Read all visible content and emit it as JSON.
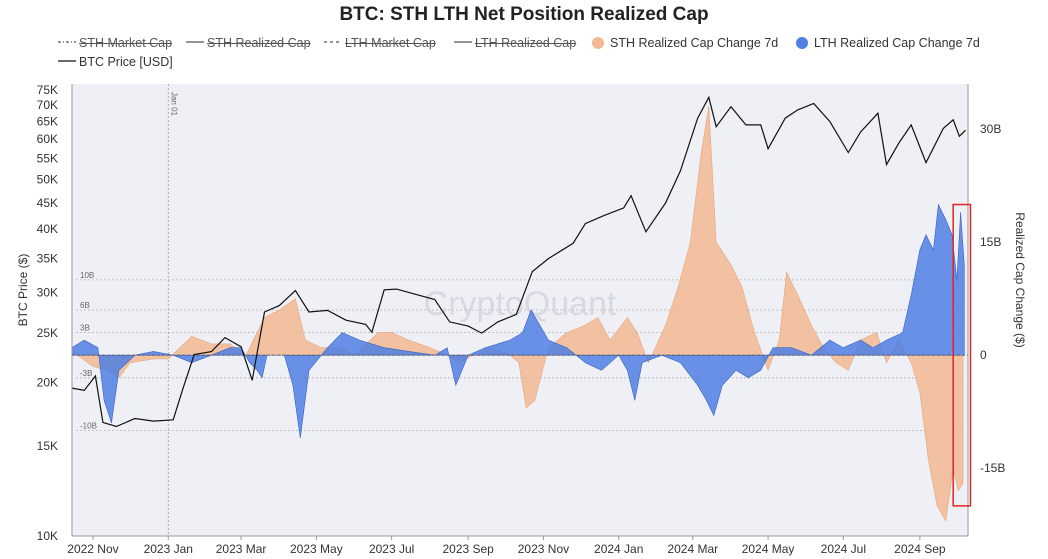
{
  "chart_data": {
    "type": "area",
    "title": "BTC: STH LTH Net Position Realized Cap",
    "legend": [
      {
        "label": "STH Market Cap",
        "style": "dashdot",
        "color": "#555555",
        "hidden": true
      },
      {
        "label": "STH Realized Cap",
        "style": "solid",
        "color": "#555555",
        "hidden": true
      },
      {
        "label": "LTH Market Cap",
        "style": "dashed",
        "color": "#555555",
        "hidden": true
      },
      {
        "label": "LTH Realized Cap",
        "style": "solid",
        "color": "#555555",
        "hidden": true
      },
      {
        "label": "STH Realized Cap Change 7d",
        "style": "dot",
        "color": "#f1b993",
        "hidden": false
      },
      {
        "label": "LTH Realized Cap Change 7d",
        "style": "dot",
        "color": "#4f7fe3",
        "hidden": false
      },
      {
        "label": "BTC Price [USD]",
        "style": "solid",
        "color": "#111111",
        "hidden": false
      }
    ],
    "x_tick_labels": [
      "2022 Nov",
      "2023 Jan",
      "2023 Mar",
      "2023 May",
      "2023 Jul",
      "2023 Sep",
      "2023 Nov",
      "2024 Jan",
      "2024 Mar",
      "2024 May",
      "2024 Jul",
      "2024 Sep"
    ],
    "x_range": [
      "2022-10-15",
      "2024-10-10"
    ],
    "y_left": {
      "label": "BTC Price ($)",
      "scale": "log",
      "ticks": [
        "10K",
        "15K",
        "20K",
        "25K",
        "30K",
        "35K",
        "40K",
        "45K",
        "50K",
        "55K",
        "60K",
        "65K",
        "70K",
        "75K"
      ],
      "range": [
        10000,
        77000
      ]
    },
    "y_right": {
      "label": "Realized Cap Change ($)",
      "ticks": [
        "30B",
        "15B",
        "0",
        "-15B"
      ],
      "range": [
        -24,
        36
      ]
    },
    "guide_labels": [
      "10B",
      "6B",
      "3B",
      "-3B",
      "-10B"
    ],
    "annotation": "Jan 01",
    "watermark": "CryptoQuant",
    "series": [
      {
        "name": "BTC Price [USD]",
        "color": "#111111",
        "points": [
          [
            "2022-10-15",
            19500
          ],
          [
            "2022-10-25",
            19300
          ],
          [
            "2022-11-03",
            20600
          ],
          [
            "2022-11-09",
            16700
          ],
          [
            "2022-11-20",
            16400
          ],
          [
            "2022-12-05",
            17000
          ],
          [
            "2022-12-20",
            16800
          ],
          [
            "2023-01-05",
            16900
          ],
          [
            "2023-01-13",
            19500
          ],
          [
            "2023-01-22",
            22700
          ],
          [
            "2023-02-05",
            23000
          ],
          [
            "2023-02-16",
            24500
          ],
          [
            "2023-03-01",
            23500
          ],
          [
            "2023-03-10",
            20200
          ],
          [
            "2023-03-20",
            27500
          ],
          [
            "2023-04-01",
            28300
          ],
          [
            "2023-04-14",
            30300
          ],
          [
            "2023-04-25",
            27500
          ],
          [
            "2023-05-10",
            27700
          ],
          [
            "2023-05-25",
            26500
          ],
          [
            "2023-06-10",
            26000
          ],
          [
            "2023-06-15",
            25100
          ],
          [
            "2023-06-25",
            30400
          ],
          [
            "2023-07-05",
            30500
          ],
          [
            "2023-07-20",
            29800
          ],
          [
            "2023-08-05",
            29100
          ],
          [
            "2023-08-17",
            26300
          ],
          [
            "2023-09-01",
            25800
          ],
          [
            "2023-09-12",
            25000
          ],
          [
            "2023-09-25",
            26300
          ],
          [
            "2023-10-10",
            27200
          ],
          [
            "2023-10-23",
            33000
          ],
          [
            "2023-11-05",
            35000
          ],
          [
            "2023-11-25",
            37500
          ],
          [
            "2023-12-05",
            41000
          ],
          [
            "2023-12-20",
            42500
          ],
          [
            "2024-01-05",
            44000
          ],
          [
            "2024-01-11",
            46500
          ],
          [
            "2024-01-23",
            39500
          ],
          [
            "2024-02-08",
            45000
          ],
          [
            "2024-02-20",
            52000
          ],
          [
            "2024-03-05",
            66000
          ],
          [
            "2024-03-14",
            72500
          ],
          [
            "2024-03-20",
            63500
          ],
          [
            "2024-04-01",
            69500
          ],
          [
            "2024-04-13",
            64000
          ],
          [
            "2024-04-25",
            64000
          ],
          [
            "2024-05-01",
            57500
          ],
          [
            "2024-05-15",
            66000
          ],
          [
            "2024-05-25",
            68500
          ],
          [
            "2024-06-07",
            70500
          ],
          [
            "2024-06-20",
            65000
          ],
          [
            "2024-07-05",
            56500
          ],
          [
            "2024-07-15",
            62000
          ],
          [
            "2024-07-29",
            67500
          ],
          [
            "2024-08-05",
            53500
          ],
          [
            "2024-08-15",
            59000
          ],
          [
            "2024-08-25",
            64000
          ],
          [
            "2024-09-06",
            54000
          ],
          [
            "2024-09-20",
            63000
          ],
          [
            "2024-09-28",
            65500
          ],
          [
            "2024-10-03",
            60800
          ],
          [
            "2024-10-08",
            62500
          ]
        ]
      },
      {
        "name": "STH Realized Cap Change 7d",
        "color": "#f1b993",
        "unit": "B",
        "points": [
          [
            "2022-10-15",
            0.5
          ],
          [
            "2022-11-01",
            -1.5
          ],
          [
            "2022-11-12",
            -2
          ],
          [
            "2022-11-22",
            -3
          ],
          [
            "2022-12-01",
            -1
          ],
          [
            "2022-12-20",
            -0.5
          ],
          [
            "2023-01-01",
            -0.5
          ],
          [
            "2023-01-20",
            2.5
          ],
          [
            "2023-02-05",
            1.5
          ],
          [
            "2023-02-20",
            1.5
          ],
          [
            "2023-03-05",
            0
          ],
          [
            "2023-03-20",
            5
          ],
          [
            "2023-04-01",
            6
          ],
          [
            "2023-04-14",
            7.5
          ],
          [
            "2023-04-22",
            2
          ],
          [
            "2023-05-05",
            1
          ],
          [
            "2023-05-20",
            1
          ],
          [
            "2023-06-01",
            0
          ],
          [
            "2023-06-20",
            3
          ],
          [
            "2023-07-01",
            3
          ],
          [
            "2023-07-15",
            2
          ],
          [
            "2023-08-01",
            1
          ],
          [
            "2023-08-15",
            0
          ],
          [
            "2023-08-25",
            -1
          ],
          [
            "2023-09-05",
            0
          ],
          [
            "2023-09-20",
            1
          ],
          [
            "2023-10-05",
            0
          ],
          [
            "2023-10-12",
            -1
          ],
          [
            "2023-10-18",
            -7
          ],
          [
            "2023-10-25",
            -6
          ],
          [
            "2023-11-05",
            1
          ],
          [
            "2023-11-20",
            3
          ],
          [
            "2023-12-05",
            4
          ],
          [
            "2023-12-15",
            5
          ],
          [
            "2023-12-25",
            2
          ],
          [
            "2024-01-08",
            5
          ],
          [
            "2024-01-16",
            3
          ],
          [
            "2024-01-25",
            -1
          ],
          [
            "2024-02-08",
            4
          ],
          [
            "2024-02-18",
            9
          ],
          [
            "2024-02-28",
            15
          ],
          [
            "2024-03-08",
            27
          ],
          [
            "2024-03-14",
            33
          ],
          [
            "2024-03-20",
            15
          ],
          [
            "2024-04-01",
            12
          ],
          [
            "2024-04-10",
            9
          ],
          [
            "2024-04-20",
            3
          ],
          [
            "2024-05-01",
            -2
          ],
          [
            "2024-05-10",
            2
          ],
          [
            "2024-05-16",
            11
          ],
          [
            "2024-05-25",
            8
          ],
          [
            "2024-06-05",
            4
          ],
          [
            "2024-06-15",
            1
          ],
          [
            "2024-06-25",
            -1
          ],
          [
            "2024-07-05",
            -2
          ],
          [
            "2024-07-15",
            2
          ],
          [
            "2024-07-28",
            3
          ],
          [
            "2024-08-05",
            -1
          ],
          [
            "2024-08-15",
            2
          ],
          [
            "2024-08-25",
            -1
          ],
          [
            "2024-09-01",
            -5
          ],
          [
            "2024-09-08",
            -14
          ],
          [
            "2024-09-15",
            -20
          ],
          [
            "2024-09-22",
            -22
          ],
          [
            "2024-09-28",
            -15
          ],
          [
            "2024-10-02",
            -18
          ],
          [
            "2024-10-06",
            -17
          ]
        ]
      },
      {
        "name": "LTH Realized Cap Change 7d",
        "color": "#4f7fe3",
        "unit": "B",
        "points": [
          [
            "2022-10-15",
            1
          ],
          [
            "2022-10-25",
            2
          ],
          [
            "2022-11-05",
            1
          ],
          [
            "2022-11-10",
            -6
          ],
          [
            "2022-11-16",
            -9
          ],
          [
            "2022-11-22",
            -2
          ],
          [
            "2022-12-05",
            0
          ],
          [
            "2022-12-20",
            0.5
          ],
          [
            "2023-01-05",
            0
          ],
          [
            "2023-01-20",
            -1
          ],
          [
            "2023-02-05",
            0
          ],
          [
            "2023-02-20",
            1
          ],
          [
            "2023-03-01",
            1
          ],
          [
            "2023-03-08",
            -1
          ],
          [
            "2023-03-14",
            -2
          ],
          [
            "2023-03-18",
            -3
          ],
          [
            "2023-03-22",
            0
          ],
          [
            "2023-04-05",
            0
          ],
          [
            "2023-04-12",
            -4
          ],
          [
            "2023-04-18",
            -11
          ],
          [
            "2023-04-25",
            -2
          ],
          [
            "2023-05-10",
            1
          ],
          [
            "2023-05-22",
            3
          ],
          [
            "2023-06-05",
            2
          ],
          [
            "2023-06-25",
            1
          ],
          [
            "2023-07-15",
            0.5
          ],
          [
            "2023-08-05",
            0
          ],
          [
            "2023-08-15",
            1
          ],
          [
            "2023-08-22",
            -4
          ],
          [
            "2023-09-01",
            0
          ],
          [
            "2023-09-15",
            1
          ],
          [
            "2023-10-05",
            2
          ],
          [
            "2023-10-15",
            3
          ],
          [
            "2023-10-22",
            6
          ],
          [
            "2023-11-05",
            2
          ],
          [
            "2023-11-20",
            1
          ],
          [
            "2023-12-05",
            -1
          ],
          [
            "2023-12-18",
            -2
          ],
          [
            "2024-01-01",
            0
          ],
          [
            "2024-01-08",
            -2
          ],
          [
            "2024-01-14",
            -6
          ],
          [
            "2024-01-20",
            -1
          ],
          [
            "2024-02-05",
            0
          ],
          [
            "2024-02-20",
            -1
          ],
          [
            "2024-03-05",
            -4
          ],
          [
            "2024-03-12",
            -6
          ],
          [
            "2024-03-18",
            -8
          ],
          [
            "2024-03-25",
            -4
          ],
          [
            "2024-04-05",
            -2
          ],
          [
            "2024-04-15",
            -3
          ],
          [
            "2024-04-25",
            -2
          ],
          [
            "2024-05-05",
            1
          ],
          [
            "2024-05-20",
            1
          ],
          [
            "2024-06-05",
            0
          ],
          [
            "2024-06-20",
            2
          ],
          [
            "2024-07-01",
            1
          ],
          [
            "2024-07-15",
            2
          ],
          [
            "2024-07-25",
            1
          ],
          [
            "2024-08-05",
            2
          ],
          [
            "2024-08-18",
            3
          ],
          [
            "2024-08-25",
            8
          ],
          [
            "2024-09-01",
            14
          ],
          [
            "2024-09-06",
            16
          ],
          [
            "2024-09-12",
            14
          ],
          [
            "2024-09-16",
            20
          ],
          [
            "2024-09-22",
            18
          ],
          [
            "2024-09-27",
            16
          ],
          [
            "2024-10-01",
            10
          ],
          [
            "2024-10-04",
            19
          ],
          [
            "2024-10-07",
            12
          ]
        ]
      }
    ]
  }
}
